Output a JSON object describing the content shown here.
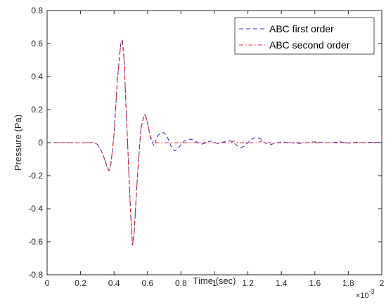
{
  "chart_data": {
    "type": "line",
    "xlabel": "Time (sec)",
    "ylabel": "Pressure (Pa)",
    "x_exponent_label": "×10",
    "x_exponent_power": "-3",
    "xlim": [
      0,
      2
    ],
    "ylim": [
      -0.8,
      0.8
    ],
    "xticks": [
      "0",
      "0.2",
      "0.4",
      "0.6",
      "0.8",
      "1",
      "1.2",
      "1.4",
      "1.6",
      "1.8",
      "2"
    ],
    "yticks": [
      "-0.8",
      "-0.6",
      "-0.4",
      "-0.2",
      "0",
      "0.2",
      "0.4",
      "0.6",
      "0.8"
    ],
    "grid": false,
    "legend_position": "top-right",
    "series": [
      {
        "name": "ABC first order",
        "color": "#3a3aa8",
        "dash": "dashed",
        "x": [
          0,
          0.28,
          0.3,
          0.32,
          0.34,
          0.36,
          0.37,
          0.38,
          0.4,
          0.42,
          0.44,
          0.45,
          0.46,
          0.48,
          0.5,
          0.51,
          0.52,
          0.54,
          0.56,
          0.58,
          0.59,
          0.6,
          0.62,
          0.64,
          0.66,
          0.68,
          0.7,
          0.72,
          0.74,
          0.76,
          0.78,
          0.8,
          0.82,
          0.84,
          0.86,
          0.88,
          0.9,
          0.92,
          0.94,
          0.96,
          0.98,
          1.0,
          1.02,
          1.04,
          1.06,
          1.08,
          1.1,
          1.12,
          1.14,
          1.16,
          1.18,
          1.2,
          1.22,
          1.24,
          1.26,
          1.28,
          1.3,
          1.32,
          1.34,
          1.36,
          1.4,
          1.45,
          1.5,
          1.55,
          1.6,
          1.65,
          1.7,
          1.75,
          1.8,
          1.85,
          1.9,
          1.95,
          2.0
        ],
        "y": [
          0,
          0,
          -0.01,
          -0.04,
          -0.09,
          -0.15,
          -0.17,
          -0.14,
          0.05,
          0.38,
          0.6,
          0.62,
          0.5,
          0.02,
          -0.45,
          -0.62,
          -0.55,
          -0.2,
          0.08,
          0.17,
          0.16,
          0.12,
          0.02,
          -0.02,
          0.04,
          0.06,
          0.06,
          0.03,
          -0.02,
          -0.05,
          -0.04,
          -0.01,
          0.01,
          0.02,
          0.02,
          0.015,
          0.0,
          -0.01,
          -0.005,
          0.005,
          0.01,
          0.0,
          -0.005,
          0.0,
          0.005,
          0.01,
          0.01,
          -0.005,
          -0.02,
          -0.03,
          -0.02,
          0.0,
          0.02,
          0.03,
          0.03,
          0.02,
          0.0,
          -0.01,
          -0.01,
          -0.005,
          0.005,
          0.0,
          -0.005,
          0.0,
          0.005,
          0.0,
          0.0,
          0.005,
          -0.003,
          0.003,
          0.0,
          0.003,
          0.0
        ]
      },
      {
        "name": "ABC second order",
        "color": "#e0263c",
        "dash": "dashdot",
        "x": [
          0,
          0.28,
          0.3,
          0.32,
          0.34,
          0.36,
          0.37,
          0.38,
          0.4,
          0.42,
          0.44,
          0.45,
          0.46,
          0.48,
          0.5,
          0.51,
          0.52,
          0.54,
          0.56,
          0.58,
          0.59,
          0.6,
          0.62,
          0.64,
          0.66,
          0.7,
          0.8,
          0.9,
          1.0,
          1.1,
          1.12,
          1.14,
          1.2,
          1.26,
          1.28,
          1.3,
          1.4,
          1.6,
          1.8,
          2.0
        ],
        "y": [
          0,
          0,
          -0.01,
          -0.04,
          -0.09,
          -0.15,
          -0.17,
          -0.14,
          0.05,
          0.38,
          0.6,
          0.62,
          0.5,
          0.02,
          -0.45,
          -0.62,
          -0.55,
          -0.2,
          0.08,
          0.17,
          0.16,
          0.12,
          0.03,
          0.0,
          0.0,
          0.0,
          0.0,
          0.0,
          0.0,
          0.0,
          0.01,
          0.0,
          0.0,
          0.0,
          0.01,
          0.0,
          0.0,
          0.0,
          0.0,
          0.0
        ]
      }
    ]
  }
}
